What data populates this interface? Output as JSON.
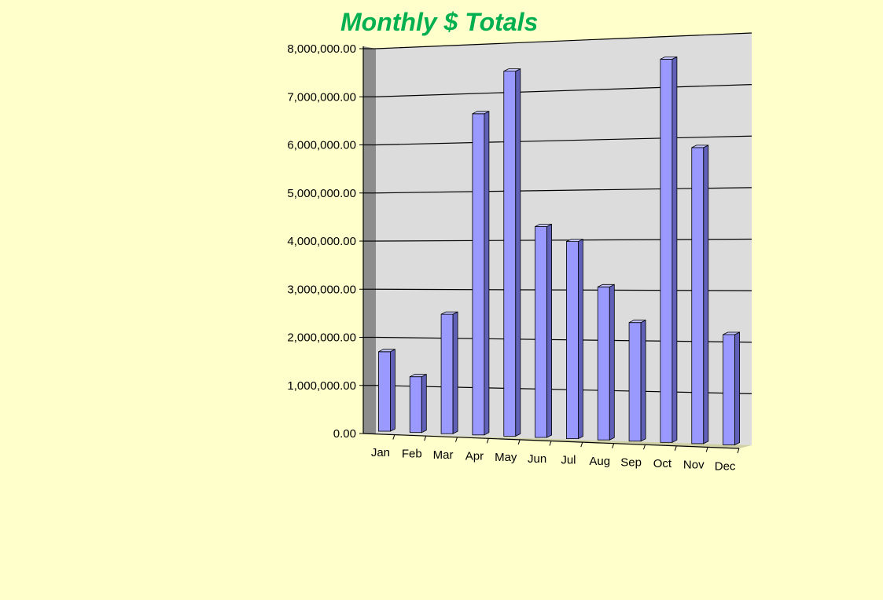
{
  "chart_data": {
    "type": "bar",
    "title": "Monthly $ Totals",
    "xlabel": "",
    "ylabel": "",
    "categories": [
      "Jan",
      "Feb",
      "Mar",
      "Apr",
      "May",
      "Jun",
      "Jul",
      "Aug",
      "Sep",
      "Oct",
      "Nov",
      "Dec"
    ],
    "values": [
      1650000,
      1150000,
      2450000,
      6550000,
      7400000,
      4250000,
      3950000,
      3050000,
      2350000,
      7550000,
      5800000,
      2150000
    ],
    "ylim": [
      0,
      8000000
    ],
    "yticks": [
      0,
      1000000,
      2000000,
      3000000,
      4000000,
      5000000,
      6000000,
      7000000,
      8000000
    ],
    "ytick_labels": [
      "0.00",
      "1,000,000.00",
      "2,000,000.00",
      "3,000,000.00",
      "4,000,000.00",
      "5,000,000.00",
      "6,000,000.00",
      "7,000,000.00",
      "8,000,000.00"
    ],
    "grid": true,
    "legend": "none",
    "style": "3d-perspective",
    "colors": {
      "bar_front": "#9999ff",
      "bar_side": "#6060b8",
      "bar_top": "#c4c4ff",
      "back_wall": "#dcdcdc",
      "side_wall": "#8c8c8c",
      "floor": "#cfcfa6",
      "gridline": "#000000",
      "title": "#00b050",
      "background": "#ffffcc"
    }
  }
}
